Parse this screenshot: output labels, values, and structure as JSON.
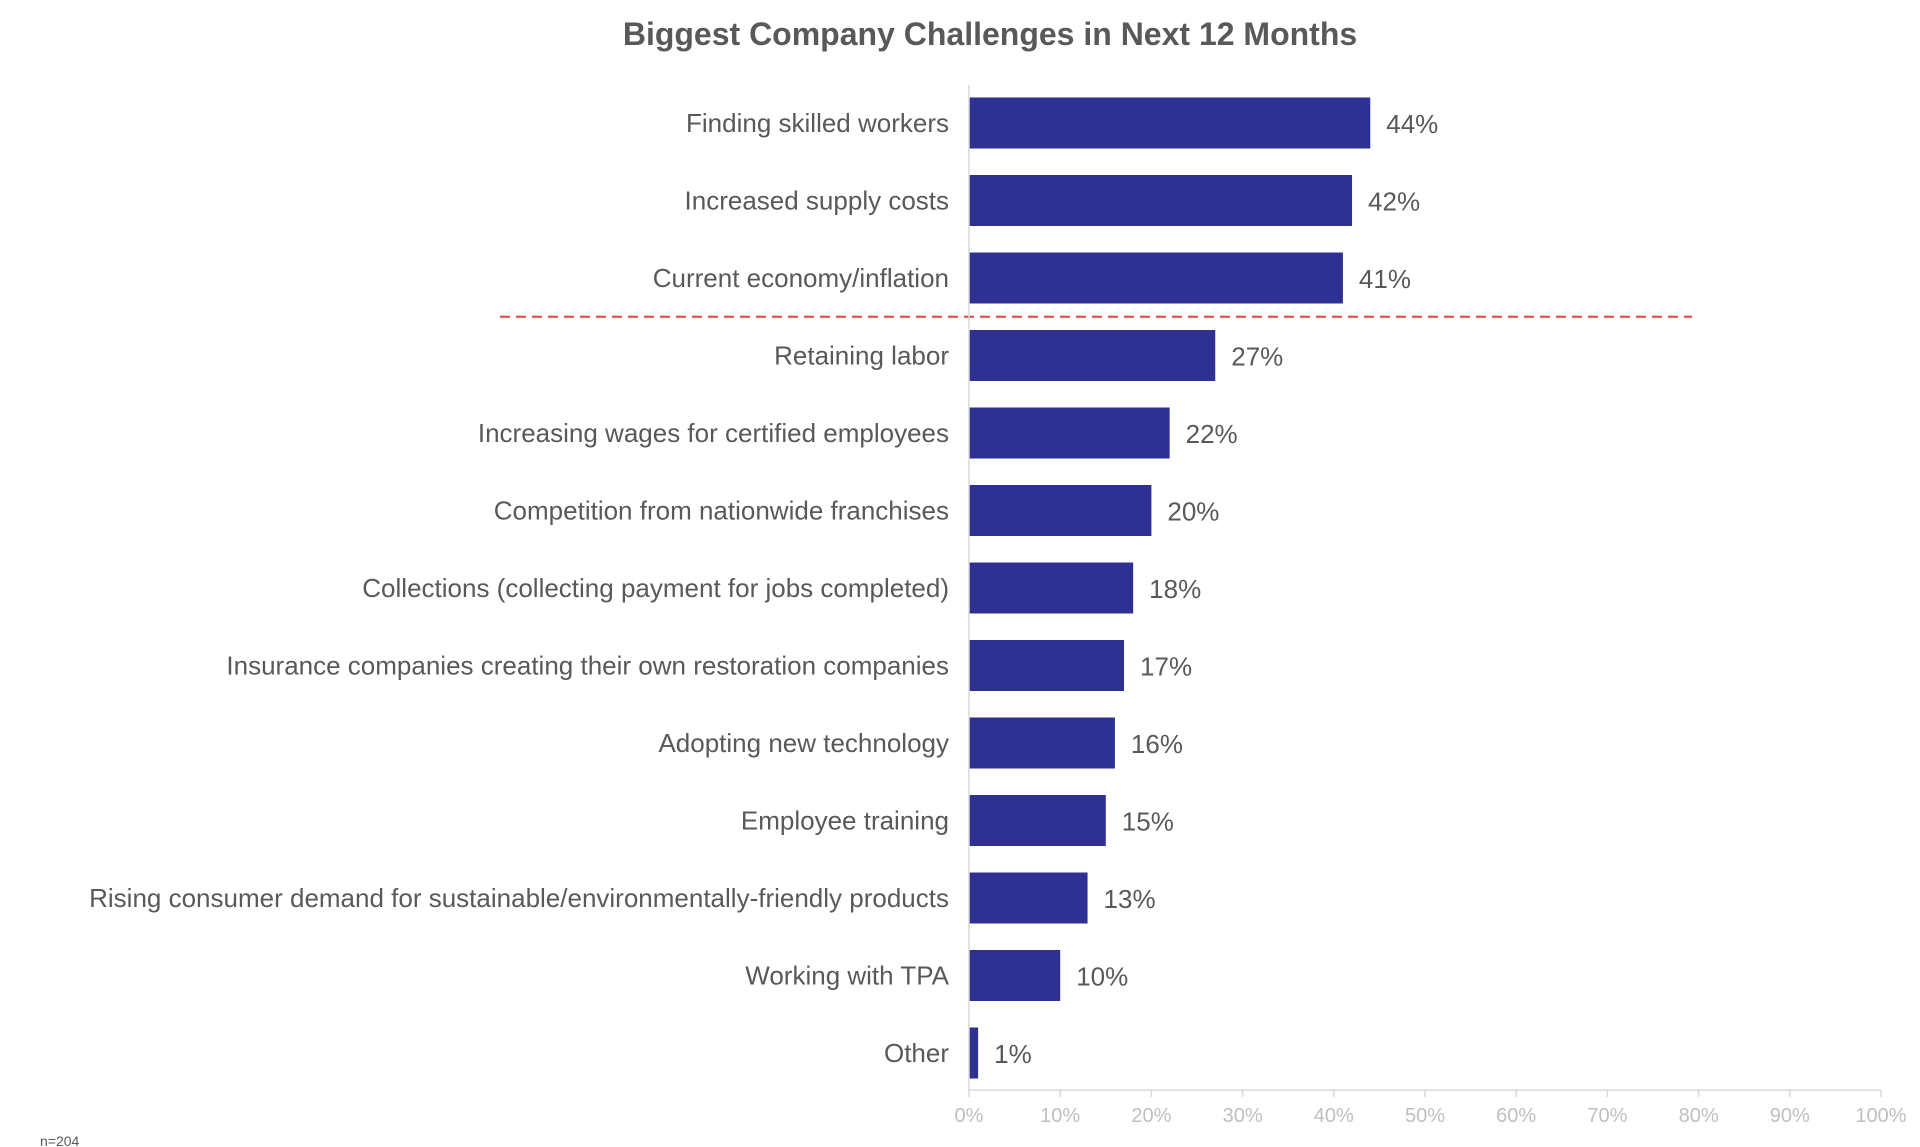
{
  "chart_data": {
    "type": "bar",
    "orientation": "horizontal",
    "title": "Biggest Company Challenges in Next 12 Months",
    "xlabel": "",
    "ylabel": "",
    "xlim": [
      0,
      100
    ],
    "x_ticks": [
      "0%",
      "10%",
      "20%",
      "30%",
      "40%",
      "50%",
      "60%",
      "70%",
      "80%",
      "90%",
      "100%"
    ],
    "categories": [
      "Finding skilled workers",
      "Increased supply costs",
      "Current economy/inflation",
      "Retaining labor",
      "Increasing wages for certified employees",
      "Competition from nationwide franchises",
      "Collections (collecting payment for jobs completed)",
      "Insurance companies creating their own restoration companies",
      "Adopting new technology",
      "Employee training",
      "Rising consumer demand for sustainable/environmentally-friendly products",
      "Working with TPA",
      "Other"
    ],
    "values": [
      44,
      42,
      41,
      27,
      22,
      20,
      18,
      17,
      16,
      15,
      13,
      10,
      1
    ],
    "value_labels": [
      "44%",
      "42%",
      "41%",
      "27%",
      "22%",
      "20%",
      "18%",
      "17%",
      "16%",
      "15%",
      "13%",
      "10%",
      "1%"
    ],
    "threshold_after_index": 2,
    "grid": false,
    "legend": "none"
  },
  "colors": {
    "bar": "#2e3192",
    "threshold": "#e8423f"
  },
  "footnote": "n=204"
}
